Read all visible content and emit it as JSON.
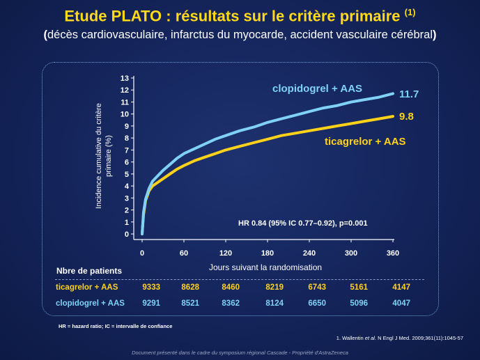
{
  "header": {
    "title": "Etude PLATO : résultats sur le critère primaire",
    "title_ref": "(1)",
    "subtitle_open": "(",
    "subtitle_text": "décès cardiovasculaire, infarctus du myocarde, accident vasculaire cérébral",
    "subtitle_close": ")"
  },
  "colors": {
    "title": "#ffd91a",
    "clopidogrel": "#7fd2f5",
    "ticagrelor": "#ffd21a",
    "axis": "#ffffff"
  },
  "chart_data": {
    "type": "line",
    "title": "",
    "xlabel": "Jours suivant la randomisation",
    "ylabel_line1": "Incidence cumulative du critère",
    "ylabel_line2": "primaire (%)",
    "xlim": [
      0,
      360
    ],
    "ylim": [
      0,
      13
    ],
    "xticks": [
      0,
      60,
      120,
      180,
      240,
      300,
      360
    ],
    "yticks": [
      0,
      1,
      2,
      3,
      4,
      5,
      6,
      7,
      8,
      9,
      10,
      11,
      12,
      13
    ],
    "annotation": "HR 0.84 (95% IC 0.77–0.92), p=0.001",
    "series": [
      {
        "name": "clopidogrel + AAS",
        "final_label": "11.7",
        "x": [
          0,
          2,
          5,
          10,
          15,
          20,
          30,
          40,
          50,
          60,
          75,
          90,
          105,
          120,
          140,
          160,
          180,
          200,
          220,
          240,
          260,
          280,
          300,
          320,
          340,
          360
        ],
        "y": [
          0,
          1.8,
          2.9,
          3.8,
          4.4,
          4.7,
          5.3,
          5.8,
          6.3,
          6.7,
          7.1,
          7.5,
          7.9,
          8.2,
          8.6,
          8.9,
          9.3,
          9.6,
          9.9,
          10.2,
          10.5,
          10.7,
          11.0,
          11.2,
          11.4,
          11.7
        ]
      },
      {
        "name": "ticagrelor + AAS",
        "final_label": "9.8",
        "x": [
          0,
          2,
          5,
          10,
          15,
          20,
          30,
          40,
          50,
          60,
          75,
          90,
          105,
          120,
          140,
          160,
          180,
          200,
          220,
          240,
          260,
          280,
          300,
          320,
          340,
          360
        ],
        "y": [
          0,
          1.6,
          2.8,
          3.6,
          4.0,
          4.2,
          4.6,
          5.0,
          5.4,
          5.7,
          6.1,
          6.4,
          6.7,
          7.0,
          7.3,
          7.6,
          7.9,
          8.2,
          8.4,
          8.6,
          8.8,
          9.0,
          9.2,
          9.4,
          9.6,
          9.8
        ]
      }
    ]
  },
  "patients": {
    "header": "Nbre de patients",
    "rows": [
      {
        "label": "ticagrelor + AAS",
        "values": [
          "9333",
          "8628",
          "8460",
          "8219",
          "6743",
          "5161",
          "4147"
        ]
      },
      {
        "label": "clopidogrel + AAS",
        "values": [
          "9291",
          "8521",
          "8362",
          "8124",
          "6650",
          "5096",
          "4047"
        ]
      }
    ]
  },
  "footnote": "HR = hazard ratio; IC = intervalle de confiance",
  "reference": {
    "prefix": "1. Wallentin ",
    "etal": "et al.",
    "suffix": " N Engl J Med. 2009;361(11):1045-57"
  },
  "bottom_note": "Document présenté dans le cadre du symposium régional Cascade - Propriété d'AstraZeneca"
}
